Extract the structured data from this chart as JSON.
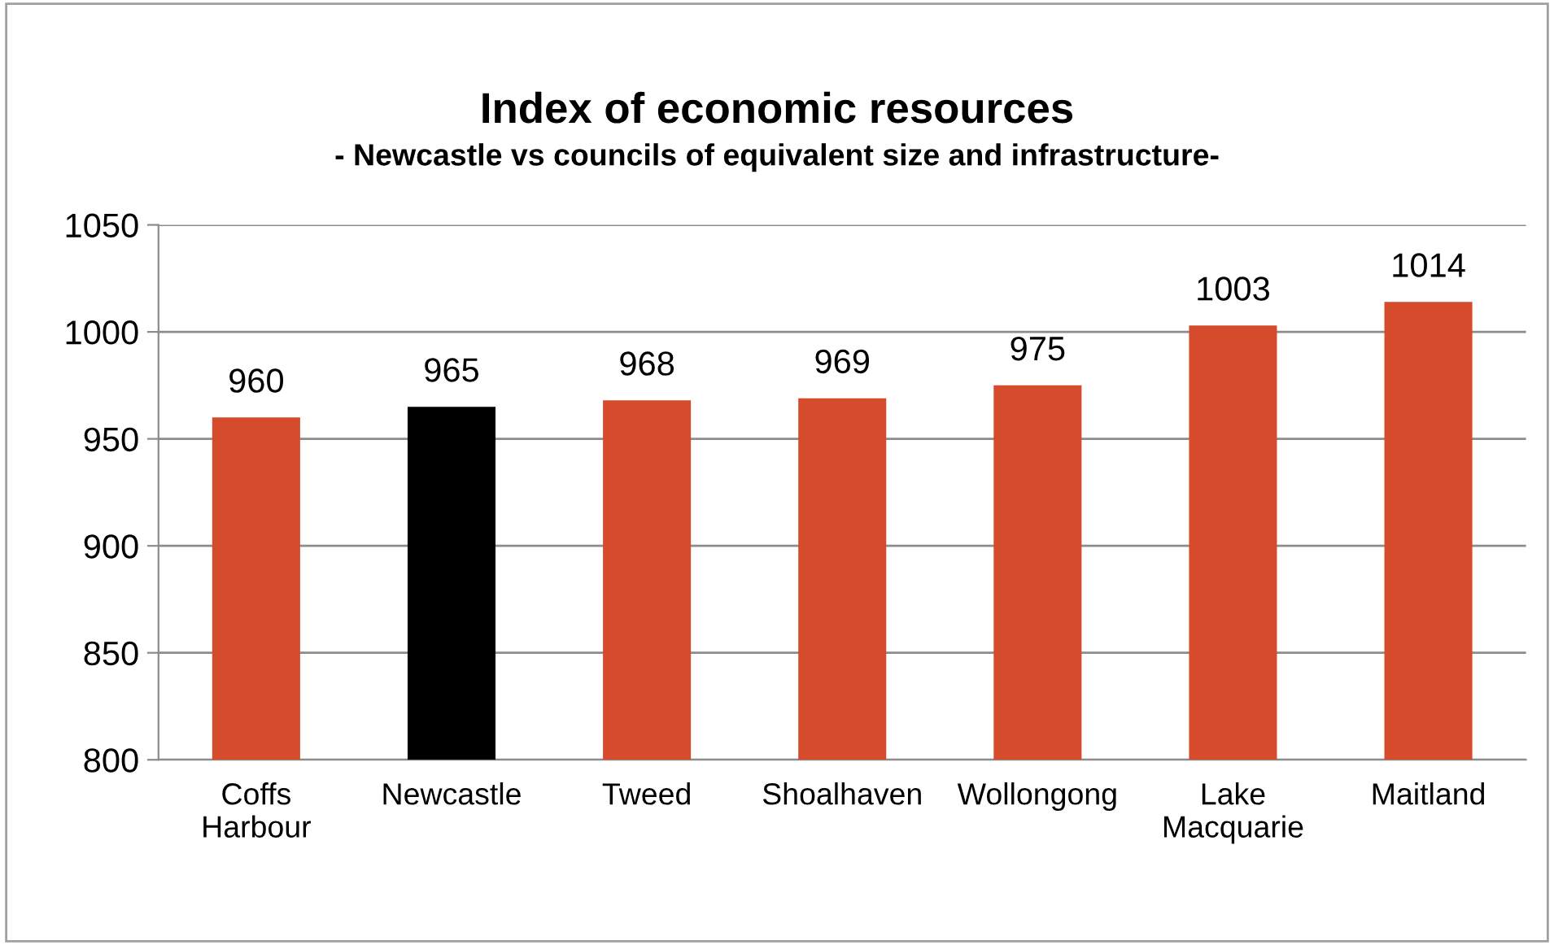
{
  "chart_data": {
    "type": "bar",
    "title": "Index of economic resources",
    "subtitle": "- Newcastle vs councils of equivalent size and infrastructure-",
    "categories": [
      "Coffs\nHarbour",
      "Newcastle",
      "Tweed",
      "Shoalhaven",
      "Wollongong",
      "Lake\nMacquarie",
      "Maitland"
    ],
    "values": [
      960,
      965,
      968,
      969,
      975,
      1003,
      1014
    ],
    "colors": [
      "#d54b2c",
      "#000000",
      "#d54b2c",
      "#d54b2c",
      "#d54b2c",
      "#d54b2c",
      "#d54b2c"
    ],
    "ylim": [
      800,
      1050
    ],
    "yticks": [
      800,
      850,
      900,
      950,
      1000,
      1050
    ],
    "grid": "y",
    "data_labels": true
  }
}
